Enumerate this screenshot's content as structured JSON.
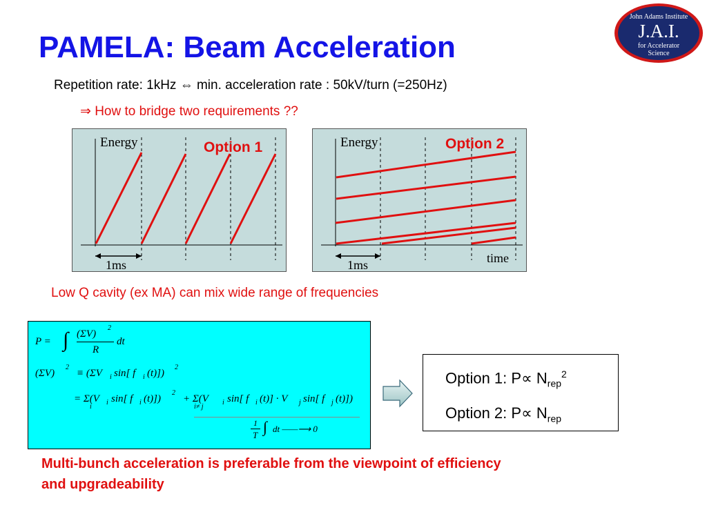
{
  "title": "PAMELA: Beam Acceleration",
  "logo": {
    "line1": "John Adams Institute",
    "line2": "J.A.I.",
    "line3": "for Accelerator",
    "line4": "Science"
  },
  "intro": {
    "line1": "Repetition rate: 1kHz ⇔ min.  acceleration rate : 50kV/turn (=250Hz)",
    "line2": "⇒ How to bridge two requirements ??"
  },
  "diagram1": {
    "y_label": "Energy",
    "option_label": "Option 1",
    "interval_label": "1ms",
    "colors": {
      "ramp": "#e01010",
      "panel": "#c5dcdc"
    }
  },
  "diagram2": {
    "y_label": "Energy",
    "option_label": "Option 2",
    "interval_label": "1ms",
    "x_label": "time",
    "colors": {
      "ramp": "#e01010",
      "panel": "#c5dcdc"
    }
  },
  "low_q_text": "Low Q cavity (ex MA) can mix wide range of frequencies",
  "formula": {
    "p_lhs": "P =",
    "integral": "∫",
    "sigma_v": "(ΣV)",
    "sq": "2",
    "r": "R",
    "dt": "dt",
    "row2_lhs": "(ΣV)",
    "row2_eq": "≡ (ΣV",
    "row2_rest": "sin[ f",
    "row2_t": "(t)])",
    "row3_eq": "= Σ(V",
    "row3_a": "sin[ f",
    "row3_b": "(t)])",
    "row3_plus": "+ Σ(V",
    "row3_c": "sin[ f",
    "row3_d": "(t)] · V",
    "row3_e": "sin[ f",
    "row3_f": "(t)])",
    "sub_i": "i",
    "sub_j": "j",
    "sub_ineqj": "i≠ j",
    "frac_one": "1",
    "frac_t": "T",
    "arrow_text": "dt ——⟶ 0"
  },
  "result": {
    "opt1_prefix": "Option 1: P∝ N",
    "opt1_sub": "rep",
    "opt1_sup": "2",
    "opt2_prefix": "Option 2: P∝ N",
    "opt2_sub": "rep"
  },
  "conclusion": {
    "line1": "Multi-bunch acceleration is preferable from the viewpoint of efficiency",
    "line2": "and upgradeability"
  }
}
